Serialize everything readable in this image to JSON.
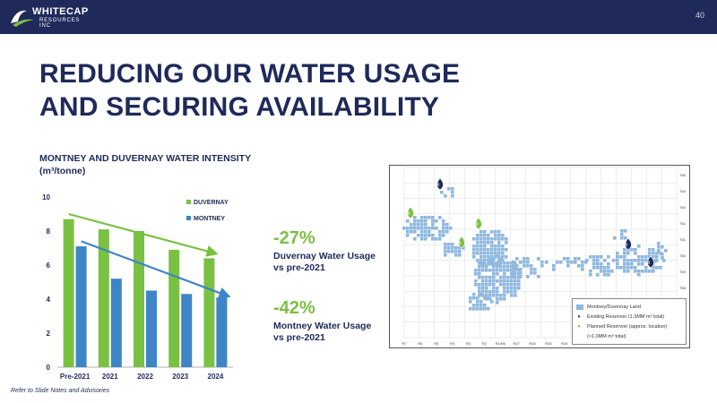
{
  "header": {
    "company_line1": "WHITECAP",
    "company_line2": "RESOURCES INC",
    "page_number": "40"
  },
  "title": {
    "line1": "REDUCING OUR WATER USAGE",
    "line2": "AND SECURING AVAILABILITY"
  },
  "chart_heading": {
    "line1": "MONTNEY AND DUVERNAY WATER INTENSITY",
    "line2": "(m³/tonne)"
  },
  "stats": [
    {
      "pct": "-27%",
      "line1": "Duvernay Water Usage",
      "line2": "vs pre-2021"
    },
    {
      "pct": "-42%",
      "line1": "Montney Water Usage",
      "line2": "vs pre-2021"
    }
  ],
  "footer": "Refer to Slide Notes and Advisories",
  "colors": {
    "navy": "#1f2a5a",
    "duvernay": "#7ac143",
    "montney": "#3d85c6",
    "land": "#8fb8de"
  },
  "chart_data": {
    "type": "bar",
    "categories": [
      "Pre-2021",
      "2021",
      "2022",
      "2023",
      "2024"
    ],
    "series": [
      {
        "name": "DUVERNAY",
        "values": [
          8.7,
          8.1,
          8.0,
          6.9,
          6.4
        ],
        "color": "#7ac143"
      },
      {
        "name": "MONTNEY",
        "values": [
          7.1,
          5.2,
          4.5,
          4.3,
          4.1
        ],
        "color": "#3d85c6"
      }
    ],
    "ylim": [
      0,
      10
    ],
    "yticks": [
      0,
      2,
      4,
      6,
      8,
      10
    ],
    "trend_arrows": [
      {
        "series": "DUVERNAY",
        "from": 9.0,
        "to": 6.7
      },
      {
        "series": "MONTNEY",
        "from": 7.4,
        "to": 4.2
      }
    ],
    "legend_position": "top-right",
    "grid": false
  },
  "map": {
    "legend": [
      {
        "icon": "land-swatch",
        "label": "Montney/Duvernay Land"
      },
      {
        "icon": "existing-reservoir-drop",
        "label": "Existing Reservoir (1.3MM m³ total)"
      },
      {
        "icon": "planned-reservoir-drop",
        "label": "Planned Reservoir (approx. location)"
      },
      {
        "icon": "",
        "label": "(>1.0MM m³ total)"
      }
    ],
    "bottom_labels": [
      "R7",
      "R6",
      "R5",
      "R4",
      "R3",
      "R2",
      "R1W6",
      "R27",
      "R26",
      "R25",
      "R24",
      "R23",
      "R22",
      "R21",
      "R20",
      "R19",
      "R18",
      "R17W5"
    ],
    "right_labels": [
      "T65",
      "T64",
      "T63",
      "T62",
      "T61",
      "T60",
      "T59",
      "T58",
      "T57",
      "T56",
      "T55"
    ]
  }
}
